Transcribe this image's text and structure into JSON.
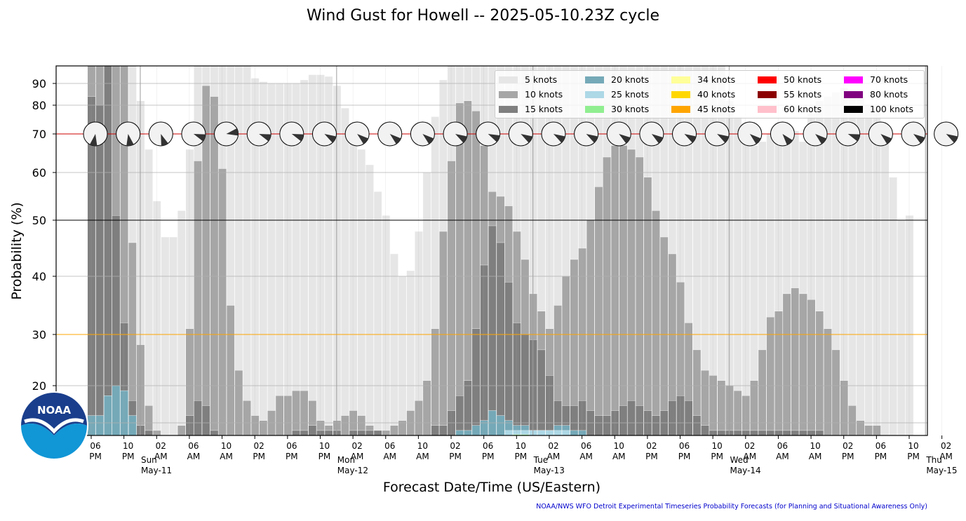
{
  "title": "Wind Gust for Howell -- 2025-05-10.23Z cycle",
  "xlabel": "Forecast Date/Time (US/Eastern)",
  "ylabel": "Probability (%)",
  "footer": "NOAA/NWS WFO Detroit Experimental Timeseries Probability Forecasts (for Planning and Situational Awareness Only)",
  "logo_text": "NOAA",
  "colors": {
    "5 knots": "#e6e6e6",
    "10 knots": "#a6a6a6",
    "15 knots": "#7f7f7f",
    "20 knots": "#75a9b8",
    "25 knots": "#add8e6",
    "30 knots": "#90ee90",
    "34 knots": "#ffff99",
    "40 knots": "#ffd700",
    "45 knots": "#ffa500",
    "50 knots": "#ff0000",
    "55 knots": "#8b0000",
    "60 knots": "#ffc0cb",
    "70 knots": "#ff00ff",
    "80 knots": "#800080",
    "100 knots": "#000000",
    "ref_70": "#cc0000",
    "ref_50": "#000000",
    "ref_30": "#ffa500",
    "footer": "#0000cc"
  },
  "chart_data": {
    "type": "bar",
    "stacked": "overlay",
    "scale": "custom-nonlinear",
    "start_time": "2025-05-10 06 PM",
    "interval_hours": 1,
    "ylim": [
      10,
      95
    ],
    "yticks": [
      20,
      30,
      40,
      50,
      60,
      70,
      80,
      90
    ],
    "grid": true,
    "legend_position": "top-right",
    "reference_lines": [
      70,
      50,
      30
    ],
    "xtick_labels": [
      {
        "hour": 0,
        "lines": [
          "06",
          "PM"
        ]
      },
      {
        "hour": 4,
        "lines": [
          "10",
          "PM"
        ]
      },
      {
        "hour": 8,
        "lines": [
          "02",
          "AM"
        ]
      },
      {
        "hour": 12,
        "lines": [
          "06",
          "AM"
        ]
      },
      {
        "hour": 16,
        "lines": [
          "10",
          "AM"
        ]
      },
      {
        "hour": 20,
        "lines": [
          "02",
          "PM"
        ]
      },
      {
        "hour": 24,
        "lines": [
          "06",
          "PM"
        ]
      },
      {
        "hour": 28,
        "lines": [
          "10",
          "PM"
        ]
      },
      {
        "hour": 32,
        "lines": [
          "02",
          "AM"
        ]
      },
      {
        "hour": 36,
        "lines": [
          "06",
          "AM"
        ]
      },
      {
        "hour": 40,
        "lines": [
          "10",
          "AM"
        ]
      },
      {
        "hour": 44,
        "lines": [
          "02",
          "PM"
        ]
      },
      {
        "hour": 48,
        "lines": [
          "06",
          "PM"
        ]
      },
      {
        "hour": 52,
        "lines": [
          "10",
          "PM"
        ]
      },
      {
        "hour": 56,
        "lines": [
          "02",
          "AM"
        ]
      },
      {
        "hour": 60,
        "lines": [
          "06",
          "AM"
        ]
      },
      {
        "hour": 64,
        "lines": [
          "10",
          "AM"
        ]
      },
      {
        "hour": 68,
        "lines": [
          "02",
          "PM"
        ]
      },
      {
        "hour": 72,
        "lines": [
          "06",
          "PM"
        ]
      },
      {
        "hour": 76,
        "lines": [
          "10",
          "PM"
        ]
      },
      {
        "hour": 80,
        "lines": [
          "02",
          "AM"
        ]
      },
      {
        "hour": 84,
        "lines": [
          "06",
          "AM"
        ]
      },
      {
        "hour": 88,
        "lines": [
          "10",
          "AM"
        ]
      },
      {
        "hour": 92,
        "lines": [
          "02",
          "PM"
        ]
      },
      {
        "hour": 96,
        "lines": [
          "06",
          "PM"
        ]
      },
      {
        "hour": 100,
        "lines": [
          "10",
          "PM"
        ]
      },
      {
        "hour": 104,
        "lines": [
          "02",
          "AM"
        ]
      },
      {
        "hour": 108,
        "lines": [
          "06",
          "AM"
        ]
      },
      {
        "hour": 112,
        "lines": [
          "10",
          "AM"
        ]
      },
      {
        "hour": 116,
        "lines": [
          "02",
          "PM"
        ]
      },
      {
        "hour": 120,
        "lines": [
          "06",
          "PM"
        ]
      },
      {
        "hour": 124,
        "lines": [
          "10",
          "PM"
        ]
      }
    ],
    "day_labels": [
      {
        "hour": 6,
        "lines": [
          "Sun",
          "May-11"
        ]
      },
      {
        "hour": 30,
        "lines": [
          "Mon",
          "May-12"
        ]
      },
      {
        "hour": 54,
        "lines": [
          "Tue",
          "May-13"
        ]
      },
      {
        "hour": 78,
        "lines": [
          "Wed",
          "May-14"
        ]
      },
      {
        "hour": 102,
        "lines": [
          "Thu",
          "May-15"
        ]
      }
    ],
    "series": [
      {
        "name": "5 knots",
        "start_hour": 0,
        "values": [
          100,
          100,
          100,
          100,
          100,
          100,
          82,
          66,
          54,
          47,
          47,
          52,
          66,
          100,
          100,
          100,
          100,
          100,
          100,
          100,
          93,
          91,
          90,
          90,
          90,
          90,
          92,
          95,
          95,
          94,
          89,
          79,
          70,
          66,
          62,
          56,
          51,
          44,
          40,
          41,
          48,
          60,
          76,
          92,
          100,
          100,
          100,
          100,
          100,
          100,
          100,
          100,
          100,
          100,
          100,
          100,
          100,
          100,
          100,
          100,
          100,
          100,
          100,
          100,
          100,
          100,
          100,
          100,
          100,
          100,
          100,
          100,
          100,
          100,
          100,
          100,
          100,
          100,
          82,
          76,
          68,
          67,
          68,
          70,
          72,
          73,
          71,
          68,
          77,
          82,
          84,
          86,
          88,
          86,
          84,
          80,
          77,
          70,
          59,
          50,
          51
        ]
      },
      {
        "name": "10 knots",
        "start_hour": 0,
        "values": [
          100,
          100,
          100,
          100,
          100,
          46,
          28,
          16,
          11,
          10,
          10,
          12,
          31,
          63,
          89,
          84,
          61,
          35,
          23,
          17,
          14,
          13,
          15,
          18,
          18,
          19,
          19,
          17,
          13,
          12,
          13,
          14,
          15,
          14,
          12,
          11,
          11,
          12,
          13,
          15,
          17,
          21,
          31,
          48,
          63,
          81,
          82,
          78,
          67,
          56,
          55,
          53,
          48,
          43,
          37,
          34,
          31,
          35,
          40,
          43,
          45,
          50,
          57,
          64,
          67,
          67,
          66,
          64,
          59,
          52,
          47,
          44,
          39,
          32,
          27,
          23,
          22,
          21,
          20,
          19,
          18,
          21,
          27,
          33,
          34,
          37,
          38,
          37,
          36,
          34,
          31,
          27,
          21,
          16,
          13,
          12,
          12
        ]
      },
      {
        "name": "15 knots",
        "start_hour": 0,
        "values": [
          84,
          80,
          100,
          51,
          32,
          17,
          12,
          11,
          10,
          10,
          10,
          10,
          14,
          17,
          16,
          11,
          10,
          10,
          10,
          10,
          10,
          10,
          10,
          10,
          10,
          11,
          11,
          12,
          11,
          11,
          11,
          10,
          11,
          11,
          11,
          11,
          10,
          10,
          10,
          10,
          10,
          10,
          12,
          12,
          15,
          18,
          21,
          31,
          42,
          49,
          46,
          39,
          32,
          30,
          29,
          27,
          22,
          17,
          16,
          16,
          17,
          15,
          14,
          14,
          15,
          16,
          17,
          16,
          15,
          14,
          15,
          17,
          18,
          17,
          14,
          12,
          11,
          11,
          11,
          11,
          11,
          11,
          11,
          11,
          11,
          11,
          11,
          11,
          11,
          11,
          10,
          10,
          10,
          10,
          10,
          10,
          10
        ]
      },
      {
        "name": "20 knots",
        "start_hour": 0,
        "values": [
          14,
          14,
          18,
          20,
          19,
          14,
          10,
          10,
          10,
          10,
          10,
          10,
          10,
          10,
          10,
          10,
          10,
          10,
          10,
          10,
          10,
          10,
          10,
          10,
          10,
          10,
          10,
          10,
          10,
          10,
          10,
          10,
          10,
          10,
          10,
          10,
          10,
          10,
          10,
          10,
          10,
          10,
          10,
          10,
          10,
          11,
          11,
          12,
          13,
          15,
          14,
          13,
          12,
          12,
          11,
          11,
          11,
          12,
          12,
          11,
          11,
          10,
          10,
          10,
          10,
          10,
          10,
          10,
          10,
          10,
          10,
          10,
          10,
          10,
          10,
          10,
          10,
          10,
          10,
          10,
          10,
          10,
          10,
          10,
          10,
          10,
          10,
          10,
          10,
          10,
          10,
          10,
          10,
          10,
          10,
          10,
          10
        ]
      },
      {
        "name": "25 knots",
        "start_hour": 0,
        "values": [
          10,
          10,
          10,
          10,
          10,
          10,
          10,
          10,
          10,
          10,
          10,
          10,
          10,
          10,
          10,
          10,
          10,
          10,
          10,
          10,
          10,
          10,
          10,
          10,
          10,
          10,
          10,
          10,
          10,
          10,
          10,
          10,
          10,
          10,
          10,
          10,
          10,
          10,
          10,
          10,
          10,
          10,
          10,
          10,
          10,
          10,
          10,
          10,
          10,
          10,
          10,
          11,
          11,
          11,
          11,
          11,
          11,
          11,
          11,
          10,
          10,
          10,
          10,
          10,
          10,
          10,
          10,
          10,
          10,
          10,
          10,
          10,
          10,
          10,
          10,
          10,
          10,
          10,
          10,
          10,
          10,
          10,
          10,
          10,
          10,
          10,
          10,
          10,
          10,
          10,
          10,
          10,
          10,
          10,
          10,
          10,
          10
        ]
      },
      {
        "name": "30 knots",
        "start_hour": 0,
        "values": [
          10,
          10,
          10,
          10,
          10,
          10,
          10,
          10,
          10,
          10,
          10,
          10,
          10,
          10,
          10,
          10,
          10,
          10,
          10,
          10,
          10,
          10,
          10,
          10,
          10,
          10,
          10,
          10,
          10,
          10,
          10,
          10,
          10,
          10,
          10,
          10,
          10,
          10,
          10,
          10,
          10,
          10,
          10,
          10,
          10,
          10,
          10,
          10,
          10,
          10,
          10,
          10,
          10.2,
          10.2,
          10,
          10,
          10,
          10,
          10,
          10,
          10,
          10,
          10,
          10,
          10,
          10,
          10,
          10,
          10,
          10,
          10,
          10,
          10,
          10,
          10,
          10,
          10,
          10,
          10,
          10,
          10,
          10,
          10,
          10,
          10,
          10,
          10,
          10,
          10,
          10,
          10,
          10,
          10,
          10,
          10,
          10,
          10
        ]
      },
      {
        "name": "34 knots",
        "values": []
      },
      {
        "name": "40 knots",
        "values": []
      },
      {
        "name": "45 knots",
        "values": []
      },
      {
        "name": "50 knots",
        "values": []
      },
      {
        "name": "55 knots",
        "values": []
      },
      {
        "name": "60 knots",
        "values": []
      },
      {
        "name": "70 knots",
        "values": []
      },
      {
        "name": "80 knots",
        "values": []
      },
      {
        "name": "100 knots",
        "values": []
      }
    ],
    "wind_direction_hours": [
      0,
      4,
      8,
      12,
      16,
      20,
      24,
      28,
      32,
      36,
      40,
      44,
      48,
      52,
      56,
      60,
      64,
      68,
      72,
      76,
      80,
      84,
      88,
      92,
      96,
      100,
      104,
      108,
      112,
      116
    ],
    "wind_direction_deg": [
      190,
      170,
      160,
      110,
      80,
      110,
      110,
      120,
      130,
      130,
      130,
      120,
      115,
      120,
      120,
      120,
      125,
      125,
      120,
      120,
      130,
      140,
      130,
      110,
      130,
      125,
      120,
      120,
      140,
      160
    ]
  }
}
